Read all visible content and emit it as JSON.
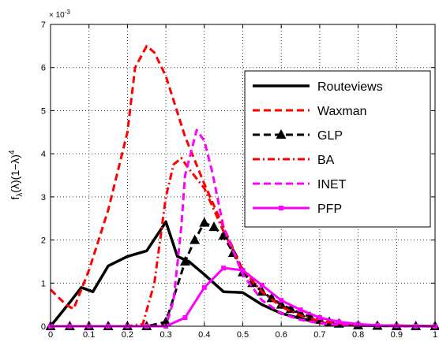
{
  "chart_data": {
    "type": "line",
    "title": "",
    "xlabel": "",
    "ylabel_main": "f",
    "ylabel_sub": "λ",
    "ylabel_rest": "(λ)(1−λ)",
    "ylabel_sup": "4",
    "y_multiplier_label": "× 10",
    "y_multiplier_exp": "-3",
    "xlim": [
      0,
      1
    ],
    "ylim": [
      0,
      7
    ],
    "grid": true,
    "legend_position": "top-right",
    "x_ticks": [
      0,
      0.1,
      0.2,
      0.3,
      0.4,
      0.5,
      0.6,
      0.7,
      0.8,
      0.9,
      1
    ],
    "x_tick_labels": [
      "0",
      "0.1",
      "0.2",
      "0.3",
      "0.4",
      "0.5",
      "0.6",
      "0.7",
      "0.8",
      "0.9",
      "1"
    ],
    "y_ticks": [
      0,
      1,
      2,
      3,
      4,
      5,
      6,
      7
    ],
    "y_tick_labels": [
      "0",
      "1",
      "2",
      "3",
      "4",
      "5",
      "6",
      "7"
    ],
    "series": [
      {
        "name": "Routeviews",
        "color": "#000000",
        "style": "solid",
        "marker": "none",
        "x": [
          0,
          0.05,
          0.08,
          0.11,
          0.15,
          0.2,
          0.25,
          0.3,
          0.33,
          0.36,
          0.4,
          0.45,
          0.5,
          0.55,
          0.6,
          0.65,
          0.7,
          0.75,
          0.8,
          1
        ],
        "y": [
          0,
          0.55,
          0.9,
          0.8,
          1.4,
          1.62,
          1.75,
          2.42,
          1.62,
          1.5,
          1.2,
          0.8,
          0.78,
          0.5,
          0.3,
          0.18,
          0.08,
          0.04,
          0.02,
          0
        ]
      },
      {
        "name": "Waxman",
        "color": "#ff0000",
        "style": "dashed",
        "marker": "none",
        "x": [
          0,
          0.04,
          0.06,
          0.1,
          0.15,
          0.2,
          0.22,
          0.25,
          0.27,
          0.3,
          0.35,
          0.4,
          0.45,
          0.5,
          0.55,
          0.6,
          0.65,
          0.7,
          0.75,
          0.8,
          0.9,
          1
        ],
        "y": [
          0.85,
          0.5,
          0.4,
          1.3,
          2.7,
          4.5,
          6.0,
          6.5,
          6.35,
          5.8,
          4.4,
          3.3,
          2.3,
          1.3,
          0.8,
          0.5,
          0.3,
          0.15,
          0.08,
          0.03,
          0.01,
          0
        ]
      },
      {
        "name": "GLP",
        "color": "#000000",
        "style": "dashed",
        "marker": "triangle",
        "x": [
          0,
          0.05,
          0.1,
          0.15,
          0.2,
          0.25,
          0.3,
          0.35,
          0.375,
          0.4,
          0.425,
          0.45,
          0.475,
          0.5,
          0.525,
          0.55,
          0.575,
          0.6,
          0.625,
          0.65,
          0.675,
          0.7,
          0.725,
          0.75,
          0.8,
          0.85,
          0.9,
          0.95,
          1
        ],
        "y": [
          0,
          0,
          0,
          0,
          0,
          0,
          0.1,
          1.5,
          2.0,
          2.4,
          2.3,
          2.1,
          1.7,
          1.25,
          1.0,
          0.8,
          0.65,
          0.5,
          0.4,
          0.3,
          0.22,
          0.15,
          0.1,
          0.06,
          0.02,
          0.01,
          0,
          0,
          0
        ]
      },
      {
        "name": "BA",
        "color": "#ff0000",
        "style": "dashdot",
        "marker": "none",
        "x": [
          0,
          0.2,
          0.24,
          0.27,
          0.3,
          0.32,
          0.34,
          0.36,
          0.4,
          0.45,
          0.5,
          0.55,
          0.6,
          0.65,
          0.7,
          0.75,
          0.8,
          1
        ],
        "y": [
          0,
          0,
          0.05,
          1.0,
          3.0,
          3.75,
          3.9,
          3.65,
          3.2,
          2.2,
          1.3,
          0.8,
          0.45,
          0.25,
          0.12,
          0.06,
          0.02,
          0
        ]
      },
      {
        "name": "INET",
        "color": "#ff00ff",
        "style": "dashed",
        "marker": "none",
        "x": [
          0,
          0.3,
          0.32,
          0.34,
          0.35,
          0.37,
          0.38,
          0.4,
          0.42,
          0.45,
          0.5,
          0.55,
          0.6,
          0.65,
          0.7,
          0.75,
          0.8,
          1
        ],
        "y": [
          0,
          0,
          0.6,
          2.3,
          3.5,
          4.2,
          4.55,
          4.3,
          3.6,
          2.3,
          1.2,
          0.6,
          0.3,
          0.15,
          0.07,
          0.03,
          0.01,
          0
        ]
      },
      {
        "name": "PFP",
        "color": "#ff00ff",
        "style": "solid",
        "marker": "square",
        "x": [
          0,
          0.05,
          0.1,
          0.15,
          0.2,
          0.25,
          0.3,
          0.35,
          0.4,
          0.45,
          0.5,
          0.55,
          0.6,
          0.65,
          0.7,
          0.75,
          0.8,
          0.85,
          0.9,
          0.95,
          1
        ],
        "y": [
          0,
          0,
          0,
          0,
          0,
          0,
          0,
          0.2,
          0.9,
          1.35,
          1.3,
          0.95,
          0.6,
          0.38,
          0.2,
          0.1,
          0.05,
          0.02,
          0.01,
          0,
          0
        ]
      }
    ]
  }
}
